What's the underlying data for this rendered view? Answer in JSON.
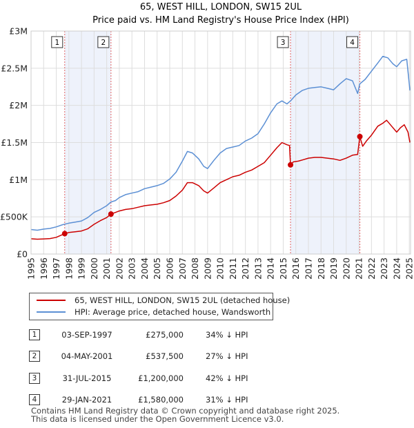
{
  "chart_data": {
    "type": "line",
    "title": "65, WEST HILL, LONDON, SW15 2UL",
    "subtitle": "Price paid vs. HM Land Registry's House Price Index (HPI)",
    "xlim": [
      1995,
      2025.1
    ],
    "ylim": [
      0,
      3000000
    ],
    "y_ticks": [
      {
        "value": 0,
        "label": "£0"
      },
      {
        "value": 500000,
        "label": "£500K"
      },
      {
        "value": 1000000,
        "label": "£1M"
      },
      {
        "value": 1500000,
        "label": "£1.5M"
      },
      {
        "value": 2000000,
        "label": "£2M"
      },
      {
        "value": 2500000,
        "label": "£2.5M"
      },
      {
        "value": 3000000,
        "label": "£3M"
      }
    ],
    "x_ticks": [
      "1995",
      "1996",
      "1997",
      "1998",
      "1999",
      "2000",
      "2001",
      "2002",
      "2003",
      "2004",
      "2005",
      "2006",
      "2007",
      "2008",
      "2009",
      "2010",
      "2011",
      "2012",
      "2013",
      "2014",
      "2015",
      "2016",
      "2017",
      "2018",
      "2019",
      "2020",
      "2021",
      "2022",
      "2023",
      "2024",
      "2025"
    ],
    "grid": true,
    "shaded_periods": [
      [
        1997.67,
        2001.34
      ],
      [
        2015.58,
        2021.08
      ]
    ],
    "series": [
      {
        "name": "65, WEST HILL, LONDON, SW15 2UL (detached house)",
        "color": "#cc0000",
        "points": [
          [
            1995.0,
            205000
          ],
          [
            1995.5,
            200000
          ],
          [
            1996.0,
            203000
          ],
          [
            1996.5,
            208000
          ],
          [
            1997.0,
            225000
          ],
          [
            1997.67,
            275000
          ],
          [
            1998.0,
            290000
          ],
          [
            1998.5,
            300000
          ],
          [
            1999.0,
            310000
          ],
          [
            1999.5,
            340000
          ],
          [
            2000.0,
            400000
          ],
          [
            2000.5,
            450000
          ],
          [
            2001.0,
            490000
          ],
          [
            2001.34,
            537500
          ],
          [
            2001.7,
            560000
          ],
          [
            2002.0,
            580000
          ],
          [
            2002.5,
            600000
          ],
          [
            2003.0,
            610000
          ],
          [
            2003.5,
            630000
          ],
          [
            2004.0,
            650000
          ],
          [
            2004.5,
            660000
          ],
          [
            2005.0,
            670000
          ],
          [
            2005.5,
            690000
          ],
          [
            2006.0,
            720000
          ],
          [
            2006.5,
            780000
          ],
          [
            2007.0,
            860000
          ],
          [
            2007.4,
            960000
          ],
          [
            2007.8,
            960000
          ],
          [
            2008.3,
            920000
          ],
          [
            2008.7,
            850000
          ],
          [
            2009.0,
            820000
          ],
          [
            2009.5,
            890000
          ],
          [
            2010.0,
            960000
          ],
          [
            2010.5,
            1000000
          ],
          [
            2011.0,
            1040000
          ],
          [
            2011.5,
            1060000
          ],
          [
            2012.0,
            1100000
          ],
          [
            2012.5,
            1130000
          ],
          [
            2013.0,
            1180000
          ],
          [
            2013.5,
            1230000
          ],
          [
            2014.0,
            1330000
          ],
          [
            2014.5,
            1430000
          ],
          [
            2014.9,
            1500000
          ],
          [
            2015.3,
            1470000
          ],
          [
            2015.5,
            1460000
          ],
          [
            2015.58,
            1200000
          ],
          [
            2015.8,
            1240000
          ],
          [
            2016.2,
            1250000
          ],
          [
            2016.6,
            1270000
          ],
          [
            2017.0,
            1290000
          ],
          [
            2017.5,
            1300000
          ],
          [
            2018.0,
            1300000
          ],
          [
            2018.5,
            1290000
          ],
          [
            2019.0,
            1280000
          ],
          [
            2019.5,
            1260000
          ],
          [
            2020.0,
            1290000
          ],
          [
            2020.5,
            1330000
          ],
          [
            2020.9,
            1340000
          ],
          [
            2021.08,
            1580000
          ],
          [
            2021.3,
            1450000
          ],
          [
            2021.6,
            1520000
          ],
          [
            2022.0,
            1600000
          ],
          [
            2022.5,
            1720000
          ],
          [
            2022.9,
            1760000
          ],
          [
            2023.2,
            1800000
          ],
          [
            2023.6,
            1720000
          ],
          [
            2024.0,
            1640000
          ],
          [
            2024.3,
            1700000
          ],
          [
            2024.6,
            1740000
          ],
          [
            2024.9,
            1640000
          ],
          [
            2025.05,
            1500000
          ]
        ]
      },
      {
        "name": "HPI: Average price, detached house, Wandsworth",
        "color": "#5b8fd4",
        "points": [
          [
            1995.0,
            330000
          ],
          [
            1995.5,
            320000
          ],
          [
            1996.0,
            335000
          ],
          [
            1996.5,
            345000
          ],
          [
            1997.0,
            365000
          ],
          [
            1997.5,
            395000
          ],
          [
            1998.0,
            415000
          ],
          [
            1998.5,
            430000
          ],
          [
            1999.0,
            445000
          ],
          [
            1999.5,
            490000
          ],
          [
            2000.0,
            560000
          ],
          [
            2000.5,
            600000
          ],
          [
            2001.0,
            650000
          ],
          [
            2001.34,
            700000
          ],
          [
            2001.7,
            720000
          ],
          [
            2002.0,
            760000
          ],
          [
            2002.5,
            800000
          ],
          [
            2003.0,
            820000
          ],
          [
            2003.5,
            840000
          ],
          [
            2004.0,
            880000
          ],
          [
            2004.5,
            900000
          ],
          [
            2005.0,
            920000
          ],
          [
            2005.5,
            950000
          ],
          [
            2006.0,
            1010000
          ],
          [
            2006.5,
            1100000
          ],
          [
            2007.0,
            1250000
          ],
          [
            2007.4,
            1380000
          ],
          [
            2007.8,
            1360000
          ],
          [
            2008.3,
            1280000
          ],
          [
            2008.7,
            1180000
          ],
          [
            2009.0,
            1150000
          ],
          [
            2009.5,
            1260000
          ],
          [
            2010.0,
            1360000
          ],
          [
            2010.5,
            1420000
          ],
          [
            2011.0,
            1440000
          ],
          [
            2011.5,
            1460000
          ],
          [
            2012.0,
            1520000
          ],
          [
            2012.5,
            1560000
          ],
          [
            2013.0,
            1620000
          ],
          [
            2013.5,
            1750000
          ],
          [
            2014.0,
            1900000
          ],
          [
            2014.5,
            2020000
          ],
          [
            2014.9,
            2060000
          ],
          [
            2015.3,
            2020000
          ],
          [
            2015.58,
            2060000
          ],
          [
            2016.0,
            2140000
          ],
          [
            2016.5,
            2200000
          ],
          [
            2017.0,
            2230000
          ],
          [
            2017.5,
            2240000
          ],
          [
            2018.0,
            2250000
          ],
          [
            2018.5,
            2230000
          ],
          [
            2019.0,
            2210000
          ],
          [
            2019.5,
            2290000
          ],
          [
            2020.0,
            2360000
          ],
          [
            2020.5,
            2330000
          ],
          [
            2020.9,
            2160000
          ],
          [
            2021.08,
            2290000
          ],
          [
            2021.5,
            2350000
          ],
          [
            2022.0,
            2460000
          ],
          [
            2022.5,
            2570000
          ],
          [
            2022.9,
            2660000
          ],
          [
            2023.3,
            2640000
          ],
          [
            2023.7,
            2560000
          ],
          [
            2024.0,
            2520000
          ],
          [
            2024.4,
            2600000
          ],
          [
            2024.8,
            2620000
          ],
          [
            2025.05,
            2200000
          ]
        ]
      }
    ],
    "sales": [
      {
        "n": "1",
        "date": "03-SEP-1997",
        "x": 1997.67,
        "price": 275000,
        "price_label": "£275,000",
        "hpi": "34% ↓ HPI"
      },
      {
        "n": "2",
        "date": "04-MAY-2001",
        "x": 2001.34,
        "price": 537500,
        "price_label": "£537,500",
        "hpi": "27% ↓ HPI"
      },
      {
        "n": "3",
        "date": "31-JUL-2015",
        "x": 2015.58,
        "price": 1200000,
        "price_label": "£1,200,000",
        "hpi": "42% ↓ HPI"
      },
      {
        "n": "4",
        "date": "29-JAN-2021",
        "x": 2021.08,
        "price": 1580000,
        "price_label": "£1,580,000",
        "hpi": "31% ↓ HPI"
      }
    ]
  },
  "legend": {
    "property": "65, WEST HILL, LONDON, SW15 2UL (detached house)",
    "hpi": "HPI: Average price, detached house, Wandsworth"
  },
  "footer": {
    "line1": "Contains HM Land Registry data © Crown copyright and database right 2025.",
    "line2": "This data is licensed under the Open Government Licence v3.0."
  }
}
